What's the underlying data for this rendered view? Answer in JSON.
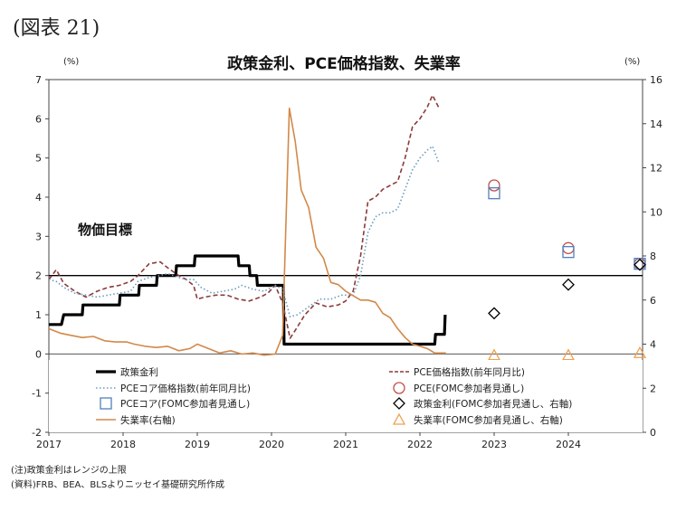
{
  "figure_label": "(図表 21)",
  "notes": [
    "(注)政策金利はレンジの上限",
    "(資料)FRB、BEA、BLSよりニッセイ基礎研究所作成"
  ],
  "chart_data": {
    "type": "line",
    "title": "政策金利、PCE価格指数、失業率",
    "y_left_unit": "(%)",
    "y_right_unit": "(%)",
    "ylim_left": [
      -2,
      7
    ],
    "ylim_right": [
      0,
      16
    ],
    "xlim": [
      2017,
      2025
    ],
    "yticks_left": [
      "-2",
      "-1",
      "0",
      "1",
      "2",
      "3",
      "4",
      "5",
      "6",
      "7"
    ],
    "yticks_right": [
      "0",
      "2",
      "4",
      "6",
      "8",
      "10",
      "12",
      "14",
      "16"
    ],
    "xticks": [
      "2017",
      "2018",
      "2019",
      "2020",
      "2021",
      "2022",
      "2023",
      "2024"
    ],
    "grid": false,
    "legend_position": "bottom",
    "annotation": {
      "text": "物価目標",
      "value": 2
    },
    "series": [
      {
        "name": "政策金利",
        "axis": "left",
        "style": "solid",
        "color": "#000000",
        "points": [
          [
            2017.0,
            0.75
          ],
          [
            2017.17,
            0.75
          ],
          [
            2017.2,
            1.0
          ],
          [
            2017.45,
            1.0
          ],
          [
            2017.46,
            1.25
          ],
          [
            2017.95,
            1.25
          ],
          [
            2017.96,
            1.5
          ],
          [
            2018.21,
            1.5
          ],
          [
            2018.22,
            1.75
          ],
          [
            2018.45,
            1.75
          ],
          [
            2018.46,
            2.0
          ],
          [
            2018.71,
            2.0
          ],
          [
            2018.72,
            2.25
          ],
          [
            2018.96,
            2.25
          ],
          [
            2018.97,
            2.5
          ],
          [
            2019.55,
            2.5
          ],
          [
            2019.56,
            2.25
          ],
          [
            2019.7,
            2.25
          ],
          [
            2019.71,
            2.0
          ],
          [
            2019.8,
            2.0
          ],
          [
            2019.81,
            1.75
          ],
          [
            2020.16,
            1.75
          ],
          [
            2020.17,
            0.25
          ],
          [
            2022.2,
            0.25
          ],
          [
            2022.21,
            0.5
          ],
          [
            2022.33,
            0.5
          ],
          [
            2022.34,
            1.0
          ]
        ]
      },
      {
        "name": "PCE価格指数(前年同月比)",
        "axis": "left",
        "style": "dashed",
        "color": "#8b3a3a",
        "points": [
          [
            2017.0,
            1.9
          ],
          [
            2017.1,
            2.15
          ],
          [
            2017.2,
            1.8
          ],
          [
            2017.35,
            1.6
          ],
          [
            2017.5,
            1.45
          ],
          [
            2017.65,
            1.6
          ],
          [
            2017.8,
            1.7
          ],
          [
            2017.95,
            1.75
          ],
          [
            2018.1,
            1.85
          ],
          [
            2018.2,
            2.0
          ],
          [
            2018.35,
            2.3
          ],
          [
            2018.5,
            2.35
          ],
          [
            2018.6,
            2.2
          ],
          [
            2018.75,
            2.0
          ],
          [
            2018.85,
            1.9
          ],
          [
            2018.95,
            1.75
          ],
          [
            2019.0,
            1.4
          ],
          [
            2019.1,
            1.45
          ],
          [
            2019.25,
            1.5
          ],
          [
            2019.4,
            1.5
          ],
          [
            2019.55,
            1.4
          ],
          [
            2019.7,
            1.35
          ],
          [
            2019.85,
            1.45
          ],
          [
            2019.95,
            1.55
          ],
          [
            2020.05,
            1.75
          ],
          [
            2020.15,
            1.3
          ],
          [
            2020.25,
            0.4
          ],
          [
            2020.32,
            0.6
          ],
          [
            2020.45,
            1.0
          ],
          [
            2020.6,
            1.3
          ],
          [
            2020.75,
            1.2
          ],
          [
            2020.9,
            1.25
          ],
          [
            2021.0,
            1.35
          ],
          [
            2021.1,
            1.6
          ],
          [
            2021.2,
            2.5
          ],
          [
            2021.3,
            3.9
          ],
          [
            2021.4,
            4.0
          ],
          [
            2021.5,
            4.2
          ],
          [
            2021.6,
            4.3
          ],
          [
            2021.7,
            4.4
          ],
          [
            2021.8,
            5.0
          ],
          [
            2021.9,
            5.8
          ],
          [
            2022.0,
            6.0
          ],
          [
            2022.1,
            6.3
          ],
          [
            2022.17,
            6.6
          ],
          [
            2022.25,
            6.3
          ]
        ]
      },
      {
        "name": "PCEコア価格指数(前年同月比)",
        "axis": "left",
        "style": "dotted",
        "color": "#6a9bbd",
        "points": [
          [
            2017.0,
            1.9
          ],
          [
            2017.1,
            1.85
          ],
          [
            2017.2,
            1.7
          ],
          [
            2017.35,
            1.55
          ],
          [
            2017.5,
            1.5
          ],
          [
            2017.65,
            1.45
          ],
          [
            2017.8,
            1.5
          ],
          [
            2017.95,
            1.55
          ],
          [
            2018.1,
            1.6
          ],
          [
            2018.2,
            1.85
          ],
          [
            2018.35,
            1.95
          ],
          [
            2018.5,
            2.0
          ],
          [
            2018.6,
            2.05
          ],
          [
            2018.75,
            1.95
          ],
          [
            2018.85,
            1.9
          ],
          [
            2018.95,
            1.9
          ],
          [
            2019.05,
            1.7
          ],
          [
            2019.2,
            1.55
          ],
          [
            2019.35,
            1.6
          ],
          [
            2019.5,
            1.65
          ],
          [
            2019.6,
            1.75
          ],
          [
            2019.75,
            1.65
          ],
          [
            2019.9,
            1.6
          ],
          [
            2020.05,
            1.75
          ],
          [
            2020.15,
            1.65
          ],
          [
            2020.25,
            0.95
          ],
          [
            2020.35,
            1.0
          ],
          [
            2020.5,
            1.2
          ],
          [
            2020.65,
            1.4
          ],
          [
            2020.8,
            1.4
          ],
          [
            2020.95,
            1.5
          ],
          [
            2021.1,
            1.5
          ],
          [
            2021.2,
            2.0
          ],
          [
            2021.3,
            3.1
          ],
          [
            2021.4,
            3.5
          ],
          [
            2021.5,
            3.6
          ],
          [
            2021.6,
            3.6
          ],
          [
            2021.7,
            3.7
          ],
          [
            2021.8,
            4.2
          ],
          [
            2021.9,
            4.7
          ],
          [
            2022.0,
            5.0
          ],
          [
            2022.1,
            5.2
          ],
          [
            2022.17,
            5.3
          ],
          [
            2022.25,
            4.9
          ]
        ]
      },
      {
        "name": "失業率(右軸)",
        "axis": "right",
        "style": "solid",
        "color": "#d2894a",
        "points": [
          [
            2017.0,
            4.7
          ],
          [
            2017.15,
            4.5
          ],
          [
            2017.3,
            4.4
          ],
          [
            2017.45,
            4.3
          ],
          [
            2017.6,
            4.35
          ],
          [
            2017.75,
            4.15
          ],
          [
            2017.9,
            4.1
          ],
          [
            2018.05,
            4.1
          ],
          [
            2018.15,
            4.0
          ],
          [
            2018.3,
            3.9
          ],
          [
            2018.45,
            3.85
          ],
          [
            2018.6,
            3.9
          ],
          [
            2018.75,
            3.7
          ],
          [
            2018.9,
            3.8
          ],
          [
            2019.0,
            4.0
          ],
          [
            2019.15,
            3.8
          ],
          [
            2019.3,
            3.6
          ],
          [
            2019.45,
            3.7
          ],
          [
            2019.6,
            3.55
          ],
          [
            2019.75,
            3.6
          ],
          [
            2019.9,
            3.5
          ],
          [
            2020.05,
            3.55
          ],
          [
            2020.15,
            4.4
          ],
          [
            2020.24,
            14.7
          ],
          [
            2020.32,
            13.2
          ],
          [
            2020.4,
            11.0
          ],
          [
            2020.5,
            10.2
          ],
          [
            2020.6,
            8.4
          ],
          [
            2020.7,
            7.9
          ],
          [
            2020.8,
            6.8
          ],
          [
            2020.9,
            6.7
          ],
          [
            2021.0,
            6.4
          ],
          [
            2021.1,
            6.2
          ],
          [
            2021.2,
            6.0
          ],
          [
            2021.3,
            6.0
          ],
          [
            2021.4,
            5.9
          ],
          [
            2021.5,
            5.4
          ],
          [
            2021.6,
            5.2
          ],
          [
            2021.7,
            4.7
          ],
          [
            2021.8,
            4.3
          ],
          [
            2021.9,
            4.0
          ],
          [
            2022.0,
            3.9
          ],
          [
            2022.1,
            3.8
          ],
          [
            2022.2,
            3.6
          ],
          [
            2022.35,
            3.6
          ]
        ]
      }
    ],
    "projections": [
      {
        "name": "PCE(FOMC参加者見通し)",
        "marker": "circle",
        "color": "#c0504d",
        "axis": "left",
        "points": [
          [
            2023.0,
            4.3
          ],
          [
            2024.0,
            2.7
          ],
          [
            2025.0,
            2.3
          ]
        ]
      },
      {
        "name": "PCEコア(FOMC参加者見通し)",
        "marker": "square",
        "color": "#4f81bd",
        "axis": "left",
        "points": [
          [
            2023.0,
            4.1
          ],
          [
            2024.0,
            2.6
          ],
          [
            2025.0,
            2.3
          ]
        ]
      },
      {
        "name": "政策金利(FOMC参加者見通し、右軸)",
        "marker": "diamond",
        "color": "#000000",
        "axis": "right",
        "points": [
          [
            2023.0,
            5.4
          ],
          [
            2024.0,
            6.7
          ],
          [
            2025.0,
            7.6
          ]
        ]
      },
      {
        "name": "失業率(FOMC参加者見通し、右軸)",
        "marker": "triangle",
        "color": "#f0a050",
        "axis": "right",
        "points": [
          [
            2023.0,
            3.5
          ],
          [
            2024.0,
            3.5
          ],
          [
            2025.0,
            3.6
          ]
        ]
      }
    ],
    "legend": [
      {
        "label": "政策金利",
        "symbol": "thick-line",
        "color": "#000000"
      },
      {
        "label": "PCE価格指数(前年同月比)",
        "symbol": "dashed-line",
        "color": "#8b3a3a"
      },
      {
        "label": "PCEコア価格指数(前年同月比)",
        "symbol": "dotted-line",
        "color": "#6a9bbd"
      },
      {
        "label": "PCE(FOMC参加者見通し)",
        "symbol": "circle",
        "color": "#c0504d"
      },
      {
        "label": "PCEコア(FOMC参加者見通し)",
        "symbol": "square",
        "color": "#4f81bd"
      },
      {
        "label": "政策金利(FOMC参加者見通し、右軸)",
        "symbol": "diamond",
        "color": "#000000"
      },
      {
        "label": "失業率(右軸)",
        "symbol": "line",
        "color": "#d2894a"
      },
      {
        "label": "失業率(FOMC参加者見通し、右軸)",
        "symbol": "triangle",
        "color": "#f0a050"
      }
    ]
  }
}
